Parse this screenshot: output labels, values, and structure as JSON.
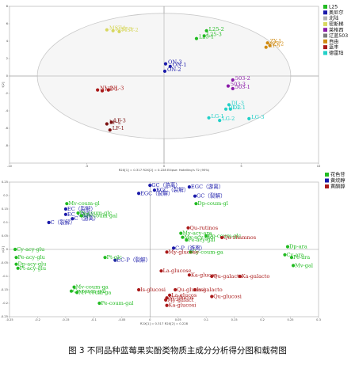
{
  "caption": "图 3 不同品种蓝莓果实酚类物质主成分分析得分图和载荷图",
  "chart_data": [
    {
      "type": "scatter",
      "ellipse": true,
      "xlim": [
        -10,
        10
      ],
      "ylim": [
        -10,
        8
      ],
      "x_ticks": [
        -10,
        -5,
        0,
        5,
        10
      ],
      "y_ticks": [
        -8,
        -6,
        -4,
        -2,
        0,
        2,
        4,
        6,
        8
      ],
      "x_axis_text": "R2X[1] = 0.317          R2X[2] = 0.228          Ellipse: Hotelling's T2 (95%)",
      "y_axis_text": "t[2]",
      "legend": [
        {
          "name": "L25",
          "color": "#22bb22"
        },
        {
          "name": "奥尼尔",
          "color": "#1a1aaa"
        },
        {
          "name": "北陆",
          "color": "#b2b2b2"
        },
        {
          "name": "密斯梯",
          "color": "#d8d860"
        },
        {
          "name": "莱格西",
          "color": "#8a1aa8"
        },
        {
          "name": "辽蓝503",
          "color": "#7a7a7a"
        },
        {
          "name": "自由",
          "color": "#d08a10"
        },
        {
          "name": "蓝丰",
          "color": "#aa1a1a"
        },
        {
          "name": "德雷珀",
          "color": "#22d0c8"
        }
      ],
      "points": [
        {
          "label": "L25-2",
          "x": 2.75,
          "y": 5.2,
          "color": "#22bb22"
        },
        {
          "label": "L25-1",
          "x": 2.1,
          "y": 4.3,
          "color": "#22bb22"
        },
        {
          "label": "L25-3",
          "x": 2.6,
          "y": 4.6,
          "color": "#22bb22"
        },
        {
          "label": "ON-3",
          "x": 0.1,
          "y": 1.4,
          "color": "#1a1aaa"
        },
        {
          "label": "ON-1",
          "x": 0.4,
          "y": 1.1,
          "color": "#1a1aaa"
        },
        {
          "label": "ON-2",
          "x": 0.05,
          "y": 0.55,
          "color": "#1a1aaa"
        },
        {
          "label": "MST-2",
          "x": -2.9,
          "y": 5.1,
          "color": "#d8d860"
        },
        {
          "label": "MST-1",
          "x": -3.7,
          "y": 5.3,
          "color": "#d8d860"
        },
        {
          "label": "MST-3",
          "x": -3.3,
          "y": 5.2,
          "color": "#d8d860"
        },
        {
          "label": "ZY-1",
          "x": 6.7,
          "y": 3.8,
          "color": "#d08a10"
        },
        {
          "label": "ZY-3",
          "x": 6.6,
          "y": 3.3,
          "color": "#d08a10"
        },
        {
          "label": "ZY-2",
          "x": 6.85,
          "y": 3.5,
          "color": "#d08a10"
        },
        {
          "label": "NL-2",
          "x": -4.3,
          "y": -1.6,
          "color": "#aa1a1a"
        },
        {
          "label": "NL-1",
          "x": -4.0,
          "y": -1.7,
          "color": "#aa1a1a"
        },
        {
          "label": "NL-3",
          "x": -3.6,
          "y": -1.6,
          "color": "#aa1a1a"
        },
        {
          "label": "503-2",
          "x": 4.45,
          "y": -0.45,
          "color": "#8a1aa8"
        },
        {
          "label": "503-1",
          "x": 4.45,
          "y": -1.45,
          "color": "#8a1aa8"
        },
        {
          "label": "503-3",
          "x": 4.15,
          "y": -1.15,
          "color": "#8a1aa8"
        },
        {
          "label": "DL-3",
          "x": 4.2,
          "y": -3.3,
          "color": "#22d0c8"
        },
        {
          "label": "DL-2",
          "x": 4.0,
          "y": -3.8,
          "color": "#22d0c8"
        },
        {
          "label": "DL-1",
          "x": 4.3,
          "y": -3.8,
          "color": "#22d0c8"
        },
        {
          "label": "LG-1",
          "x": 2.9,
          "y": -4.8,
          "color": "#22d0c8"
        },
        {
          "label": "LG-2",
          "x": 3.6,
          "y": -5.1,
          "color": "#22d0c8"
        },
        {
          "label": "LG-3",
          "x": 5.5,
          "y": -4.9,
          "color": "#22d0c8"
        },
        {
          "label": "LF-2",
          "x": -3.7,
          "y": -5.5,
          "color": "#7a1010"
        },
        {
          "label": "LF-3",
          "x": -3.4,
          "y": -5.3,
          "color": "#7a1010"
        },
        {
          "label": "LF-1",
          "x": -3.5,
          "y": -6.2,
          "color": "#7a1010"
        }
      ]
    },
    {
      "type": "scatter",
      "xlim": [
        -0.25,
        0.3
      ],
      "ylim": [
        -0.25,
        0.25
      ],
      "x_ticks": [
        -0.25,
        -0.2,
        -0.15,
        -0.1,
        -0.05,
        0,
        0.05,
        0.1,
        0.15,
        0.2,
        0.25,
        0.3
      ],
      "y_ticks": [
        -0.25,
        -0.2,
        -0.15,
        -0.1,
        -0.05,
        0,
        0.05,
        0.1,
        0.15,
        0.2,
        0.25
      ],
      "x_axis_text": "R2X[1] = 0.317     R2X[2] = 0.228",
      "y_axis_text": "p[2]",
      "legend": [
        {
          "name": "花色苷",
          "color": "#22bb22"
        },
        {
          "name": "黄烷醇",
          "color": "#1a1aaa"
        },
        {
          "name": "黄酮醇",
          "color": "#aa1a1a"
        }
      ],
      "points": [
        {
          "label": "GC（游离）",
          "x": 0.0,
          "y": 0.238,
          "color": "#1a1aaa"
        },
        {
          "label": "EGC（游离）",
          "x": 0.07,
          "y": 0.232,
          "color": "#1a1aaa"
        },
        {
          "label": "EGC（裂解）",
          "x": 0.008,
          "y": 0.22,
          "color": "#1a1aaa"
        },
        {
          "label": "EGC（裂解）",
          "x": -0.02,
          "y": 0.208,
          "color": "#1a1aaa"
        },
        {
          "label": "GC（裂解）",
          "x": 0.08,
          "y": 0.198,
          "color": "#1a1aaa"
        },
        {
          "label": "EC（裂解）",
          "x": -0.15,
          "y": 0.15,
          "color": "#1a1aaa"
        },
        {
          "label": "EC（游离）",
          "x": -0.15,
          "y": 0.13,
          "color": "#1a1aaa"
        },
        {
          "label": "C（游离）",
          "x": -0.138,
          "y": 0.114,
          "color": "#1a1aaa"
        },
        {
          "label": "C（裂解）",
          "x": -0.18,
          "y": 0.1,
          "color": "#1a1aaa"
        },
        {
          "label": "C-P（游离）",
          "x": 0.042,
          "y": 0.005,
          "color": "#1a1aaa"
        },
        {
          "label": "EC-P（裂解）",
          "x": -0.062,
          "y": -0.04,
          "color": "#1a1aaa"
        },
        {
          "label": "Mv-coum-gl",
          "x": -0.148,
          "y": 0.17,
          "color": "#22bb22"
        },
        {
          "label": "Pe-coum-glc",
          "x": -0.128,
          "y": 0.135,
          "color": "#22bb22"
        },
        {
          "label": "Mv-coum-gal",
          "x": -0.122,
          "y": 0.125,
          "color": "#22bb22"
        },
        {
          "label": "Dp-coum-gl",
          "x": 0.082,
          "y": 0.17,
          "color": "#22bb22"
        },
        {
          "label": "Mv-acy-ara",
          "x": 0.055,
          "y": 0.06,
          "color": "#22bb22"
        },
        {
          "label": "Mv-acy-glc",
          "x": 0.058,
          "y": 0.045,
          "color": "#22bb22"
        },
        {
          "label": "Pe-acy-gal",
          "x": 0.065,
          "y": 0.035,
          "color": "#22bb22"
        },
        {
          "label": "Dp-coum-glc",
          "x": 0.1,
          "y": 0.05,
          "color": "#22bb22"
        },
        {
          "label": "Cy-coum-ga",
          "x": 0.072,
          "y": -0.01,
          "color": "#22bb22"
        },
        {
          "label": "Cy-acy-glu",
          "x": -0.24,
          "y": 0.0,
          "color": "#22bb22"
        },
        {
          "label": "Pe-acy-glu",
          "x": -0.238,
          "y": -0.03,
          "color": "#22bb22"
        },
        {
          "label": "Dp-acy-glu",
          "x": -0.238,
          "y": -0.055,
          "color": "#22bb22"
        },
        {
          "label": "Pt-acy-glu",
          "x": -0.235,
          "y": -0.07,
          "color": "#22bb22"
        },
        {
          "label": "Pt-glc",
          "x": -0.08,
          "y": -0.03,
          "color": "#22bb22"
        },
        {
          "label": "Mv-coum-ga",
          "x": -0.135,
          "y": -0.14,
          "color": "#22bb22"
        },
        {
          "label": "Cy-coum-gal",
          "x": -0.14,
          "y": -0.155,
          "color": "#22bb22"
        },
        {
          "label": "Mv-coum-ga",
          "x": -0.13,
          "y": -0.16,
          "color": "#22bb22"
        },
        {
          "label": "Pe-coum-gal",
          "x": -0.09,
          "y": -0.2,
          "color": "#22bb22"
        },
        {
          "label": "Dp-ara",
          "x": 0.245,
          "y": 0.01,
          "color": "#22bb22"
        },
        {
          "label": "Cy-ara",
          "x": 0.24,
          "y": -0.02,
          "color": "#22bb22"
        },
        {
          "label": "Pe-ara",
          "x": 0.252,
          "y": -0.03,
          "color": "#22bb22"
        },
        {
          "label": "Mv-gal",
          "x": 0.255,
          "y": -0.06,
          "color": "#22bb22"
        },
        {
          "label": "Qu-rutinos",
          "x": 0.068,
          "y": 0.08,
          "color": "#aa1a1a"
        },
        {
          "label": "Qu-rhamnos",
          "x": 0.128,
          "y": 0.044,
          "color": "#aa1a1a"
        },
        {
          "label": "My-glucose",
          "x": 0.03,
          "y": -0.01,
          "color": "#aa1a1a"
        },
        {
          "label": "La-glucose",
          "x": 0.02,
          "y": -0.08,
          "color": "#aa1a1a"
        },
        {
          "label": "Ka-glucos",
          "x": 0.07,
          "y": -0.095,
          "color": "#aa1a1a"
        },
        {
          "label": "Qu-galacto",
          "x": 0.11,
          "y": -0.1,
          "color": "#aa1a1a"
        },
        {
          "label": "Ka-galacto",
          "x": 0.16,
          "y": -0.1,
          "color": "#aa1a1a"
        },
        {
          "label": "Is-glucosi",
          "x": -0.02,
          "y": -0.15,
          "color": "#aa1a1a"
        },
        {
          "label": "Qu-glucosi",
          "x": 0.045,
          "y": -0.15,
          "color": "#aa1a1a"
        },
        {
          "label": "Is-galacto",
          "x": 0.08,
          "y": -0.15,
          "color": "#aa1a1a"
        },
        {
          "label": "La-glucos",
          "x": 0.035,
          "y": -0.17,
          "color": "#aa1a1a"
        },
        {
          "label": "Sy-glucos",
          "x": 0.03,
          "y": -0.18,
          "color": "#aa1a1a"
        },
        {
          "label": "My-galact",
          "x": 0.028,
          "y": -0.188,
          "color": "#aa1a1a"
        },
        {
          "label": "Qu-glucosi",
          "x": 0.11,
          "y": -0.175,
          "color": "#aa1a1a"
        },
        {
          "label": "Ka-glucosi",
          "x": 0.03,
          "y": -0.208,
          "color": "#aa1a1a"
        }
      ]
    }
  ]
}
